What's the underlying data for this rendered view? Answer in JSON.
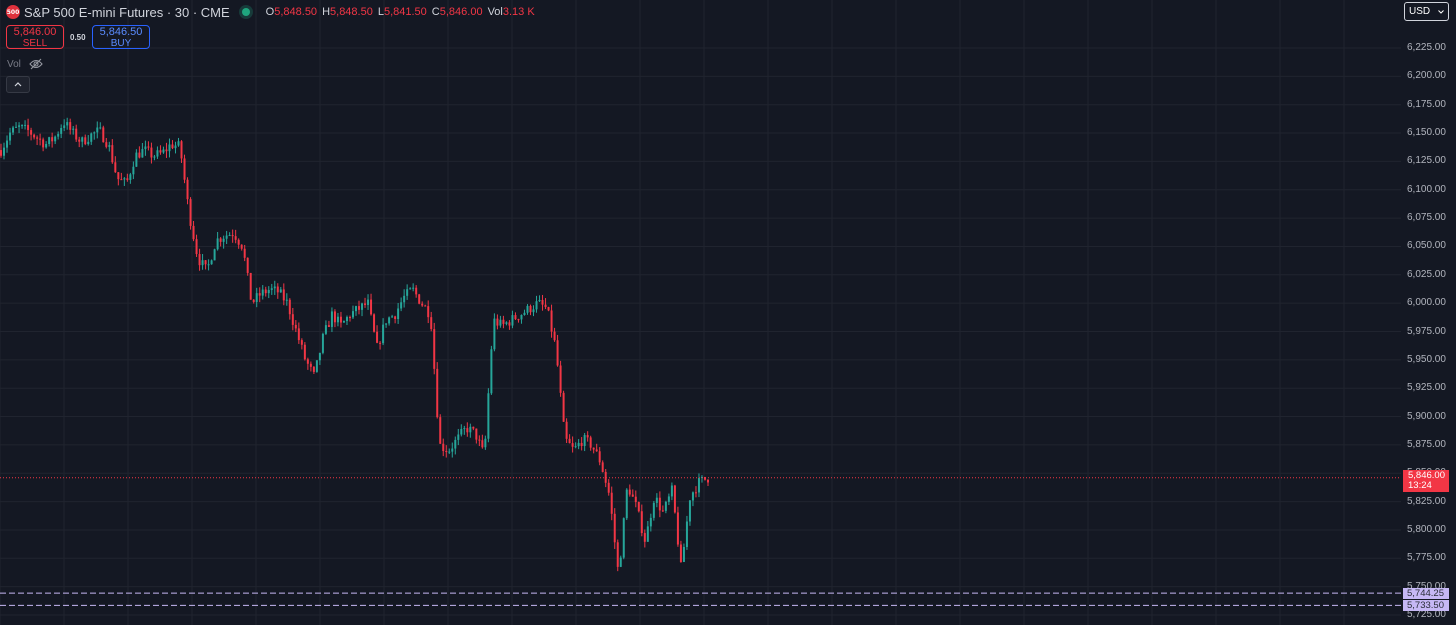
{
  "header": {
    "symbol_badge": "500",
    "title": "S&P 500 E-mini Futures · 30 · CME",
    "ohlc": [
      {
        "label": "O",
        "value": "5,848.50"
      },
      {
        "label": "H",
        "value": "5,848.50"
      },
      {
        "label": "L",
        "value": "5,841.50"
      },
      {
        "label": "C",
        "value": "5,846.00"
      }
    ],
    "volume_label": "Vol",
    "volume_value": "3.13 K"
  },
  "trade": {
    "sell_price": "5,846.00",
    "sell_label": "SELL",
    "spread": "0.50",
    "buy_price": "5,846.50",
    "buy_label": "BUY"
  },
  "indicator": {
    "label": "Vol"
  },
  "currency": {
    "value": "USD"
  },
  "current_price": {
    "value": "5,846.00",
    "countdown": "13:24",
    "color": "#f23645"
  },
  "levels": [
    {
      "value": "5,744.25",
      "price": 5744.25
    },
    {
      "value": "5,733.50",
      "price": 5733.5
    }
  ],
  "colors": {
    "background": "#141823",
    "up": "#26a69a",
    "down": "#f23645",
    "grid": "#20242f",
    "level": "#c6b8f5"
  },
  "chart_data": {
    "type": "candlestick",
    "y_ticks": [
      "6,225.00",
      "6,200.00",
      "6,175.00",
      "6,150.00",
      "6,125.00",
      "6,100.00",
      "6,075.00",
      "6,050.00",
      "6,025.00",
      "6,000.00",
      "5,975.00",
      "5,950.00",
      "5,925.00",
      "5,900.00",
      "5,875.00",
      "5,850.00",
      "5,825.00",
      "5,800.00",
      "5,775.00",
      "5,750.00",
      "5,725.00"
    ],
    "ylim": [
      5720,
      6240
    ],
    "grid": true,
    "price_path": [
      6135,
      6150,
      6155,
      6152,
      6146,
      6140,
      6146,
      6160,
      6150,
      6142,
      6148,
      6152,
      6140,
      6110,
      6105,
      6130,
      6135,
      6130,
      6132,
      6140,
      6138,
      6080,
      6040,
      6028,
      6055,
      6060,
      6062,
      6050,
      6000,
      6008,
      6012,
      6010,
      6000,
      5975,
      5950,
      5935,
      5970,
      5990,
      5980,
      5990,
      5995,
      6000,
      5960,
      5985,
      5990,
      6005,
      6012,
      6000,
      5990,
      5875,
      5870,
      5880,
      5890,
      5885,
      5865,
      5985,
      5980,
      5985,
      5990,
      5995,
      6000,
      5995,
      5960,
      5880,
      5870,
      5880,
      5875,
      5860,
      5830,
      5760,
      5840,
      5820,
      5790,
      5830,
      5815,
      5835,
      5765,
      5830,
      5842,
      5846
    ]
  }
}
